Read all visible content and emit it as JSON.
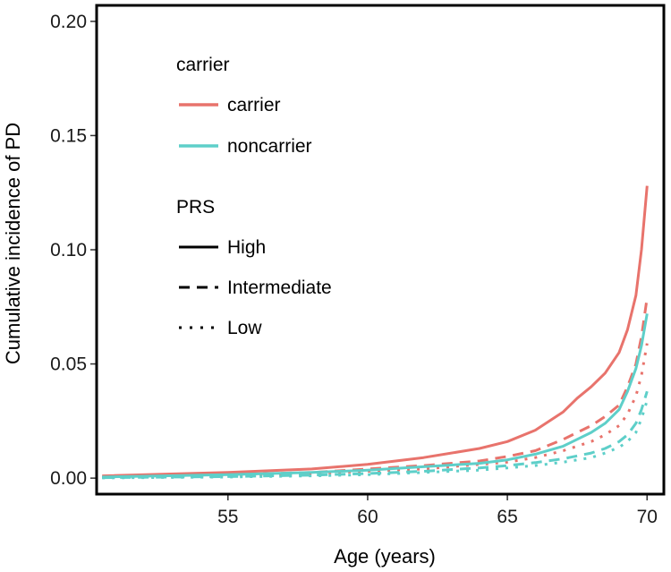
{
  "chart_data": {
    "type": "line",
    "xlabel": "Age (years)",
    "ylabel": "Cumulative incidence of PD",
    "xlim": [
      50.3,
      70.6
    ],
    "ylim": [
      -0.007,
      0.207
    ],
    "xticks": [
      55,
      60,
      65,
      70
    ],
    "xtick_labels": [
      "55",
      "60",
      "65",
      "70"
    ],
    "yticks": [
      0.0,
      0.05,
      0.1,
      0.15,
      0.2
    ],
    "ytick_labels": [
      "0.00",
      "0.05",
      "0.10",
      "0.15",
      "0.20"
    ],
    "grid": false,
    "legend": {
      "color_title": "carrier",
      "color_entries": [
        {
          "label": "carrier",
          "color": "#E8736C"
        },
        {
          "label": "noncarrier",
          "color": "#5ECFC9"
        }
      ],
      "linetype_title": "PRS",
      "linetype_entries": [
        {
          "label": "High",
          "style": "solid"
        },
        {
          "label": "Intermediate",
          "style": "dashed"
        },
        {
          "label": "Low",
          "style": "dotted"
        }
      ],
      "placement": "top-left"
    },
    "series": [
      {
        "name": "carrier High",
        "carrier": "carrier",
        "prs": "High",
        "color": "#E8736C",
        "style": "solid",
        "x": [
          50.5,
          55,
          58,
          60,
          62,
          64,
          65,
          66,
          67,
          67.5,
          68,
          68.5,
          69,
          69.3,
          69.6,
          69.8,
          70.0
        ],
        "y": [
          0.001,
          0.0025,
          0.004,
          0.006,
          0.009,
          0.013,
          0.016,
          0.021,
          0.029,
          0.035,
          0.04,
          0.046,
          0.055,
          0.065,
          0.08,
          0.1,
          0.128
        ]
      },
      {
        "name": "carrier Intermediate",
        "carrier": "carrier",
        "prs": "Intermediate",
        "color": "#E8736C",
        "style": "dashed",
        "x": [
          50.5,
          55,
          58,
          60,
          62,
          64,
          65,
          66,
          67,
          68,
          68.5,
          69,
          69.3,
          69.6,
          69.8,
          70.0
        ],
        "y": [
          0.0005,
          0.0015,
          0.0025,
          0.004,
          0.0055,
          0.0075,
          0.0095,
          0.012,
          0.017,
          0.023,
          0.027,
          0.032,
          0.04,
          0.05,
          0.062,
          0.079
        ]
      },
      {
        "name": "carrier Low",
        "carrier": "carrier",
        "prs": "Low",
        "color": "#E8736C",
        "style": "dotted",
        "x": [
          50.5,
          55,
          58,
          60,
          62,
          64,
          65,
          66,
          67,
          68,
          68.5,
          69,
          69.3,
          69.6,
          69.8,
          70.0
        ],
        "y": [
          0.0003,
          0.001,
          0.002,
          0.003,
          0.004,
          0.006,
          0.007,
          0.009,
          0.012,
          0.016,
          0.019,
          0.023,
          0.028,
          0.036,
          0.045,
          0.059
        ]
      },
      {
        "name": "noncarrier High",
        "carrier": "noncarrier",
        "prs": "High",
        "color": "#5ECFC9",
        "style": "solid",
        "x": [
          50.5,
          55,
          58,
          60,
          62,
          64,
          65,
          66,
          67,
          68,
          68.5,
          69,
          69.3,
          69.6,
          69.8,
          70.0
        ],
        "y": [
          0.0005,
          0.0015,
          0.0025,
          0.0035,
          0.005,
          0.0065,
          0.008,
          0.0105,
          0.014,
          0.02,
          0.024,
          0.03,
          0.038,
          0.048,
          0.058,
          0.072
        ]
      },
      {
        "name": "noncarrier Intermediate",
        "carrier": "noncarrier",
        "prs": "Intermediate",
        "color": "#5ECFC9",
        "style": "dashed",
        "x": [
          50.5,
          55,
          58,
          60,
          62,
          64,
          65,
          66,
          67,
          68,
          68.5,
          69,
          69.3,
          69.6,
          69.8,
          70.0
        ],
        "y": [
          0.0002,
          0.0007,
          0.0013,
          0.002,
          0.003,
          0.0045,
          0.0055,
          0.0068,
          0.0085,
          0.011,
          0.013,
          0.016,
          0.019,
          0.024,
          0.03,
          0.038
        ]
      },
      {
        "name": "noncarrier Low",
        "carrier": "noncarrier",
        "prs": "Low",
        "color": "#5ECFC9",
        "style": "dotted",
        "x": [
          50.5,
          55,
          58,
          60,
          62,
          64,
          65,
          66,
          67,
          68,
          68.5,
          69,
          69.3,
          69.6,
          69.8,
          70.0
        ],
        "y": [
          0.0001,
          0.0005,
          0.001,
          0.0015,
          0.0025,
          0.0035,
          0.0045,
          0.0055,
          0.007,
          0.009,
          0.011,
          0.0135,
          0.016,
          0.02,
          0.026,
          0.034
        ]
      }
    ]
  }
}
